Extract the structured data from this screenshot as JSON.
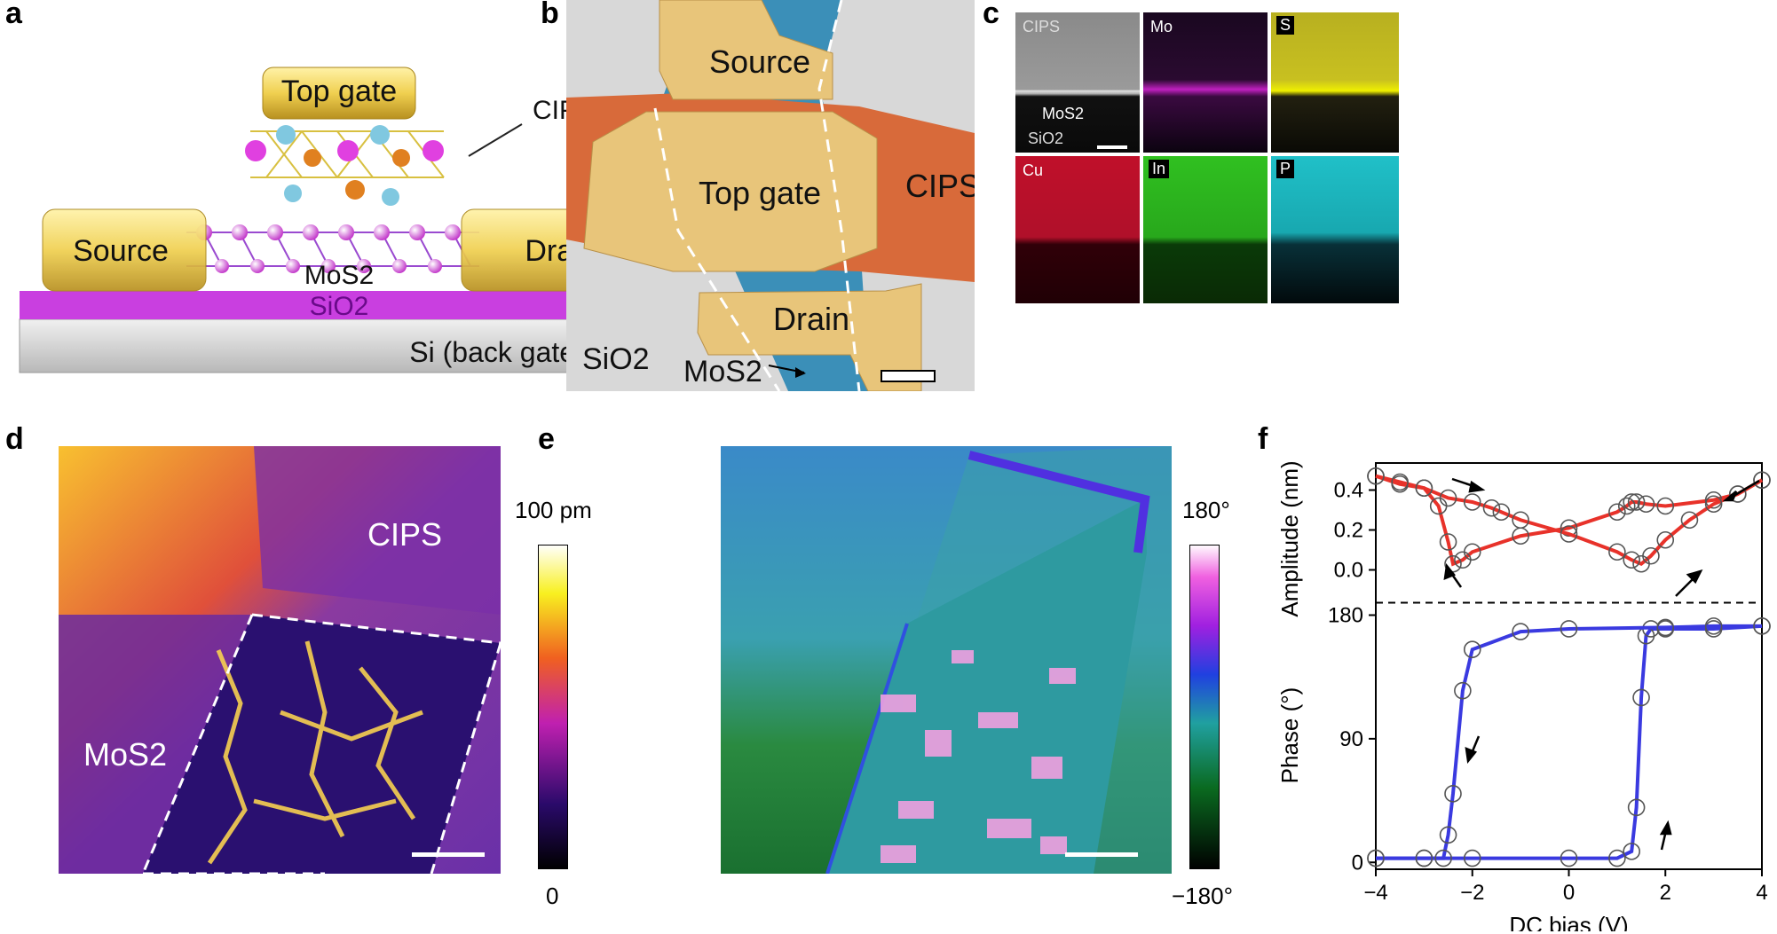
{
  "panel_labels": {
    "a": "a",
    "b": "b",
    "c": "c",
    "d": "d",
    "e": "e",
    "f": "f"
  },
  "panel_a": {
    "top_gate": "Top gate",
    "cips": "CIPS",
    "source": "Source",
    "drain": "Drain",
    "mos2": "MoS2",
    "sio2": "SiO2",
    "si": "Si (back gate)"
  },
  "panel_b": {
    "source": "Source",
    "top_gate": "Top gate",
    "cips": "CIPS",
    "drain": "Drain",
    "sio2": "SiO2",
    "mos2": "MoS2"
  },
  "panel_c": {
    "tiles": [
      "CIPS",
      "Mo",
      "S",
      "Cu",
      "In",
      "P"
    ],
    "mos2": "MoS2",
    "sio2": "SiO2"
  },
  "panel_d": {
    "cips": "CIPS",
    "mos2": "MoS2",
    "scale_max": "100 pm",
    "scale_min": "0"
  },
  "panel_e": {
    "scale_max": "180°",
    "scale_min": "−180°"
  },
  "colors": {
    "gold": "#e8c57a",
    "cips_orange": "#d86a3a",
    "mos2_blue": "#3b8fb8",
    "amp_red": "#e8322a",
    "phase_blue": "#3a3ae0",
    "sio2_purple": "#c93fe0"
  },
  "chart_data": {
    "type": "line",
    "xlabel": "DC bias (V)",
    "x_ticks": [
      "−4",
      "−2",
      "0",
      "2",
      "4"
    ],
    "xlim": [
      -4,
      4
    ],
    "top": {
      "ylabel": "Amplitude (nm)",
      "ylim": [
        -0.1,
        0.5
      ],
      "y_ticks": [
        "0.0",
        "0.2",
        "0.4"
      ],
      "forward": {
        "x": [
          -4,
          -3.5,
          -3,
          -2.7,
          -2.5,
          -2.4,
          -2.2,
          -2,
          -1,
          0,
          1,
          1.2,
          1.3,
          1.4,
          1.6,
          2,
          3,
          3.5,
          4
        ],
        "y": [
          0.47,
          0.43,
          0.41,
          0.32,
          0.14,
          0.03,
          0.05,
          0.09,
          0.17,
          0.21,
          0.29,
          0.32,
          0.34,
          0.34,
          0.33,
          0.32,
          0.35,
          0.38,
          0.45
        ]
      },
      "reverse": {
        "x": [
          4,
          3.5,
          3,
          2.5,
          2,
          1.7,
          1.5,
          1.3,
          1,
          0,
          -1,
          -1.4,
          -1.6,
          -2,
          -2.5,
          -3,
          -3.5,
          -4
        ],
        "y": [
          0.45,
          0.38,
          0.33,
          0.25,
          0.15,
          0.07,
          0.03,
          0.05,
          0.09,
          0.18,
          0.25,
          0.29,
          0.31,
          0.34,
          0.36,
          0.41,
          0.44,
          0.47
        ]
      }
    },
    "bottom": {
      "ylabel": "Phase (°)",
      "ylim": [
        -5,
        190
      ],
      "y_ticks": [
        "0",
        "90",
        "180"
      ],
      "forward": {
        "x": [
          -4,
          -3,
          -2,
          0,
          1,
          1.3,
          1.4,
          1.5,
          1.6,
          1.7,
          2,
          3,
          4
        ],
        "y": [
          3,
          3,
          3,
          3,
          3,
          8,
          40,
          120,
          165,
          170,
          170,
          170,
          172
        ]
      },
      "reverse": {
        "x": [
          4,
          3,
          2,
          0,
          -1,
          -2,
          -2.2,
          -2.4,
          -2.5,
          -2.6,
          -3,
          -4
        ],
        "y": [
          172,
          172,
          171,
          170,
          168,
          155,
          125,
          50,
          20,
          3,
          3,
          3
        ]
      }
    }
  }
}
